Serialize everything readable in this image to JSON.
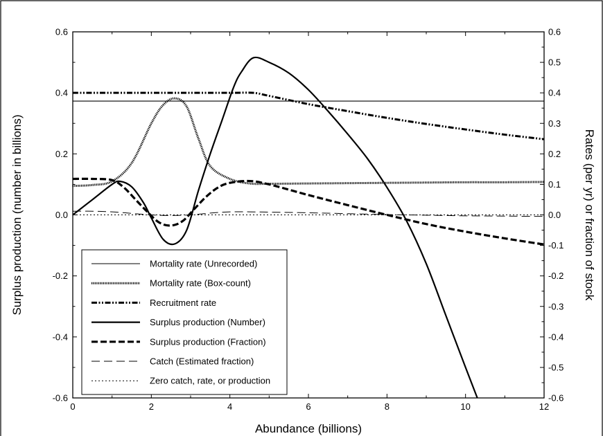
{
  "chart_data": {
    "type": "line",
    "title": "",
    "xlabel": "Abundance (billions)",
    "ylabel": "Surplus production (number in billions)",
    "y2label": "Rates (per yr) or fraction of stock",
    "xlim": [
      0,
      12
    ],
    "ylim": [
      -0.6,
      0.6
    ],
    "y2lim": [
      -0.6,
      0.6
    ],
    "x_ticks": [
      "0",
      "2",
      "4",
      "6",
      "8",
      "10",
      "12"
    ],
    "y_ticks": [
      "-0.6",
      "-0.4",
      "-0.2",
      "0.0",
      "0.2",
      "0.4",
      "0.6"
    ],
    "y2_ticks": [
      "-0.6",
      "-0.5",
      "-0.4",
      "-0.3",
      "-0.2",
      "-0.1",
      "0.0",
      "0.1",
      "0.2",
      "0.3",
      "0.4",
      "0.5",
      "0.6"
    ],
    "grid": false,
    "legend_position": "bottom-left",
    "series": [
      {
        "name": "Mortality rate (Unrecorded)",
        "style": "thin-solid",
        "x": [
          0,
          12
        ],
        "y": [
          0.373,
          0.373
        ]
      },
      {
        "name": "Mortality rate (Box-count)",
        "style": "dotted-thick",
        "x": [
          0,
          0.5,
          1.0,
          1.5,
          2.0,
          2.3,
          2.6,
          2.9,
          3.2,
          3.5,
          4.0,
          4.5,
          5,
          6,
          7,
          8,
          9,
          10,
          11,
          12
        ],
        "y": [
          0.095,
          0.098,
          0.11,
          0.17,
          0.3,
          0.36,
          0.382,
          0.355,
          0.25,
          0.16,
          0.118,
          0.103,
          0.102,
          0.103,
          0.104,
          0.105,
          0.106,
          0.107,
          0.107,
          0.108
        ]
      },
      {
        "name": "Recruitment rate",
        "style": "dash-dot-dot",
        "x": [
          0,
          1,
          2,
          3,
          4,
          4.6,
          5,
          6,
          7,
          8,
          9,
          10,
          11,
          12
        ],
        "y": [
          0.4,
          0.4,
          0.4,
          0.4,
          0.4,
          0.4,
          0.39,
          0.363,
          0.34,
          0.318,
          0.298,
          0.28,
          0.263,
          0.248
        ]
      },
      {
        "name": "Surplus production (Number)",
        "style": "solid-thick",
        "x": [
          0,
          0.5,
          1.0,
          1.2,
          1.5,
          1.8,
          2.0,
          2.3,
          2.6,
          2.9,
          3.2,
          3.5,
          3.8,
          4.1,
          4.3,
          4.6,
          5.0,
          5.5,
          6,
          6.5,
          7,
          7.5,
          8,
          8.5,
          9,
          9.5,
          10.0,
          10.3
        ],
        "y": [
          0,
          0.05,
          0.1,
          0.11,
          0.092,
          0.04,
          -0.01,
          -0.08,
          -0.095,
          -0.05,
          0.08,
          0.2,
          0.31,
          0.42,
          0.47,
          0.515,
          0.5,
          0.465,
          0.41,
          0.34,
          0.265,
          0.185,
          0.09,
          -0.02,
          -0.16,
          -0.33,
          -0.5,
          -0.6
        ]
      },
      {
        "name": "Surplus production (Fraction)",
        "style": "dashed-thick",
        "x": [
          0,
          0.5,
          1.0,
          1.3,
          1.6,
          1.9,
          2.2,
          2.5,
          2.8,
          3.1,
          3.4,
          3.7,
          4.0,
          4.5,
          5,
          6,
          7,
          8,
          9,
          10,
          11,
          12
        ],
        "y": [
          0.118,
          0.118,
          0.114,
          0.09,
          0.05,
          0.01,
          -0.025,
          -0.035,
          -0.02,
          0.02,
          0.06,
          0.09,
          0.105,
          0.111,
          0.1,
          0.065,
          0.032,
          0.0,
          -0.03,
          -0.055,
          -0.077,
          -0.097
        ]
      },
      {
        "name": "Catch (Estimated fraction)",
        "style": "long-dash-thin",
        "x": [
          0,
          0.5,
          1.0,
          1.5,
          2.0,
          2.5,
          3.0,
          3.5,
          4.0,
          4.5,
          5,
          6,
          7,
          8,
          9,
          10,
          11,
          12
        ],
        "y": [
          0.012,
          0.012,
          0.01,
          0.005,
          0.0,
          -0.002,
          0.0,
          0.006,
          0.01,
          0.01,
          0.009,
          0.007,
          0.004,
          0.001,
          -0.001,
          -0.003,
          -0.004,
          -0.005
        ]
      },
      {
        "name": "Zero catch, rate, or production",
        "style": "dotted-thin",
        "x": [
          0,
          12
        ],
        "y": [
          0,
          0
        ]
      }
    ]
  }
}
